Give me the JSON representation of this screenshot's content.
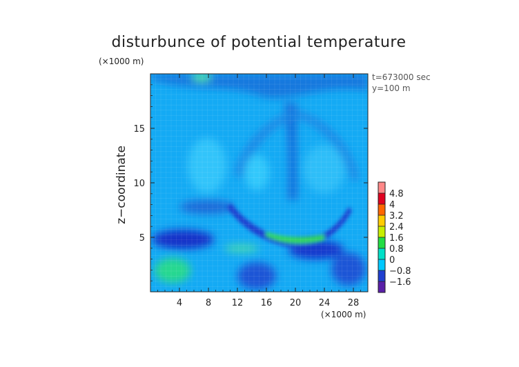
{
  "chart_data": {
    "type": "heatmap",
    "title": "disturbunce of potential temperature",
    "y_unit": "(×1000 m)",
    "x_unit": "(×1000 m)",
    "ylabel": "z−coordinate",
    "xlabel": "",
    "annotation_time": "t=673000 sec",
    "annotation_y": "y=100 m",
    "xlim": [
      0,
      30
    ],
    "ylim": [
      0,
      20
    ],
    "x_ticks": [
      4,
      8,
      12,
      16,
      20,
      24,
      28
    ],
    "x_tick_labels": [
      "4",
      "8",
      "12",
      "16",
      "20",
      "24",
      "28"
    ],
    "y_ticks": [
      5,
      10,
      15
    ],
    "y_tick_labels": [
      "5",
      "10",
      "15"
    ],
    "colorbar": {
      "levels": [
        -1.6,
        -0.8,
        0,
        0.8,
        1.6,
        2.4,
        3.2,
        4,
        4.8
      ],
      "labels": [
        "−1.6",
        "−0.8",
        "0",
        "0.8",
        "1.6",
        "2.4",
        "3.2",
        "4",
        "4.8"
      ],
      "colors": [
        "#5a1fa8",
        "#1f3fd0",
        "#00c8ff",
        "#00e0c8",
        "#22dd44",
        "#c8ee00",
        "#ffcc00",
        "#ff6600",
        "#e00020",
        "#ff8888"
      ]
    },
    "background_value": 0,
    "field_features": [
      {
        "name": "warm arc bottom",
        "x": 20,
        "z": 4.9,
        "value": 1.6
      },
      {
        "name": "warm patch lower-left",
        "x": 4,
        "z": 2.0,
        "value": 0.8
      },
      {
        "name": "cold core left",
        "x": 5,
        "z": 4.8,
        "value": -1.2
      },
      {
        "name": "cold core right",
        "x": 22.5,
        "z": 4.0,
        "value": -1.0
      },
      {
        "name": "cold bottom center",
        "x": 14,
        "z": 1.5,
        "value": -0.8
      },
      {
        "name": "cold bottom right",
        "x": 27,
        "z": 2.0,
        "value": -0.8
      },
      {
        "name": "cold plume stem",
        "x": 19,
        "z": 14,
        "value": -0.6
      },
      {
        "name": "cold top band",
        "x": 15,
        "z": 19.0,
        "value": -0.6
      },
      {
        "name": "warm top spot",
        "x": 7,
        "z": 19.5,
        "value": 0.8
      }
    ]
  }
}
